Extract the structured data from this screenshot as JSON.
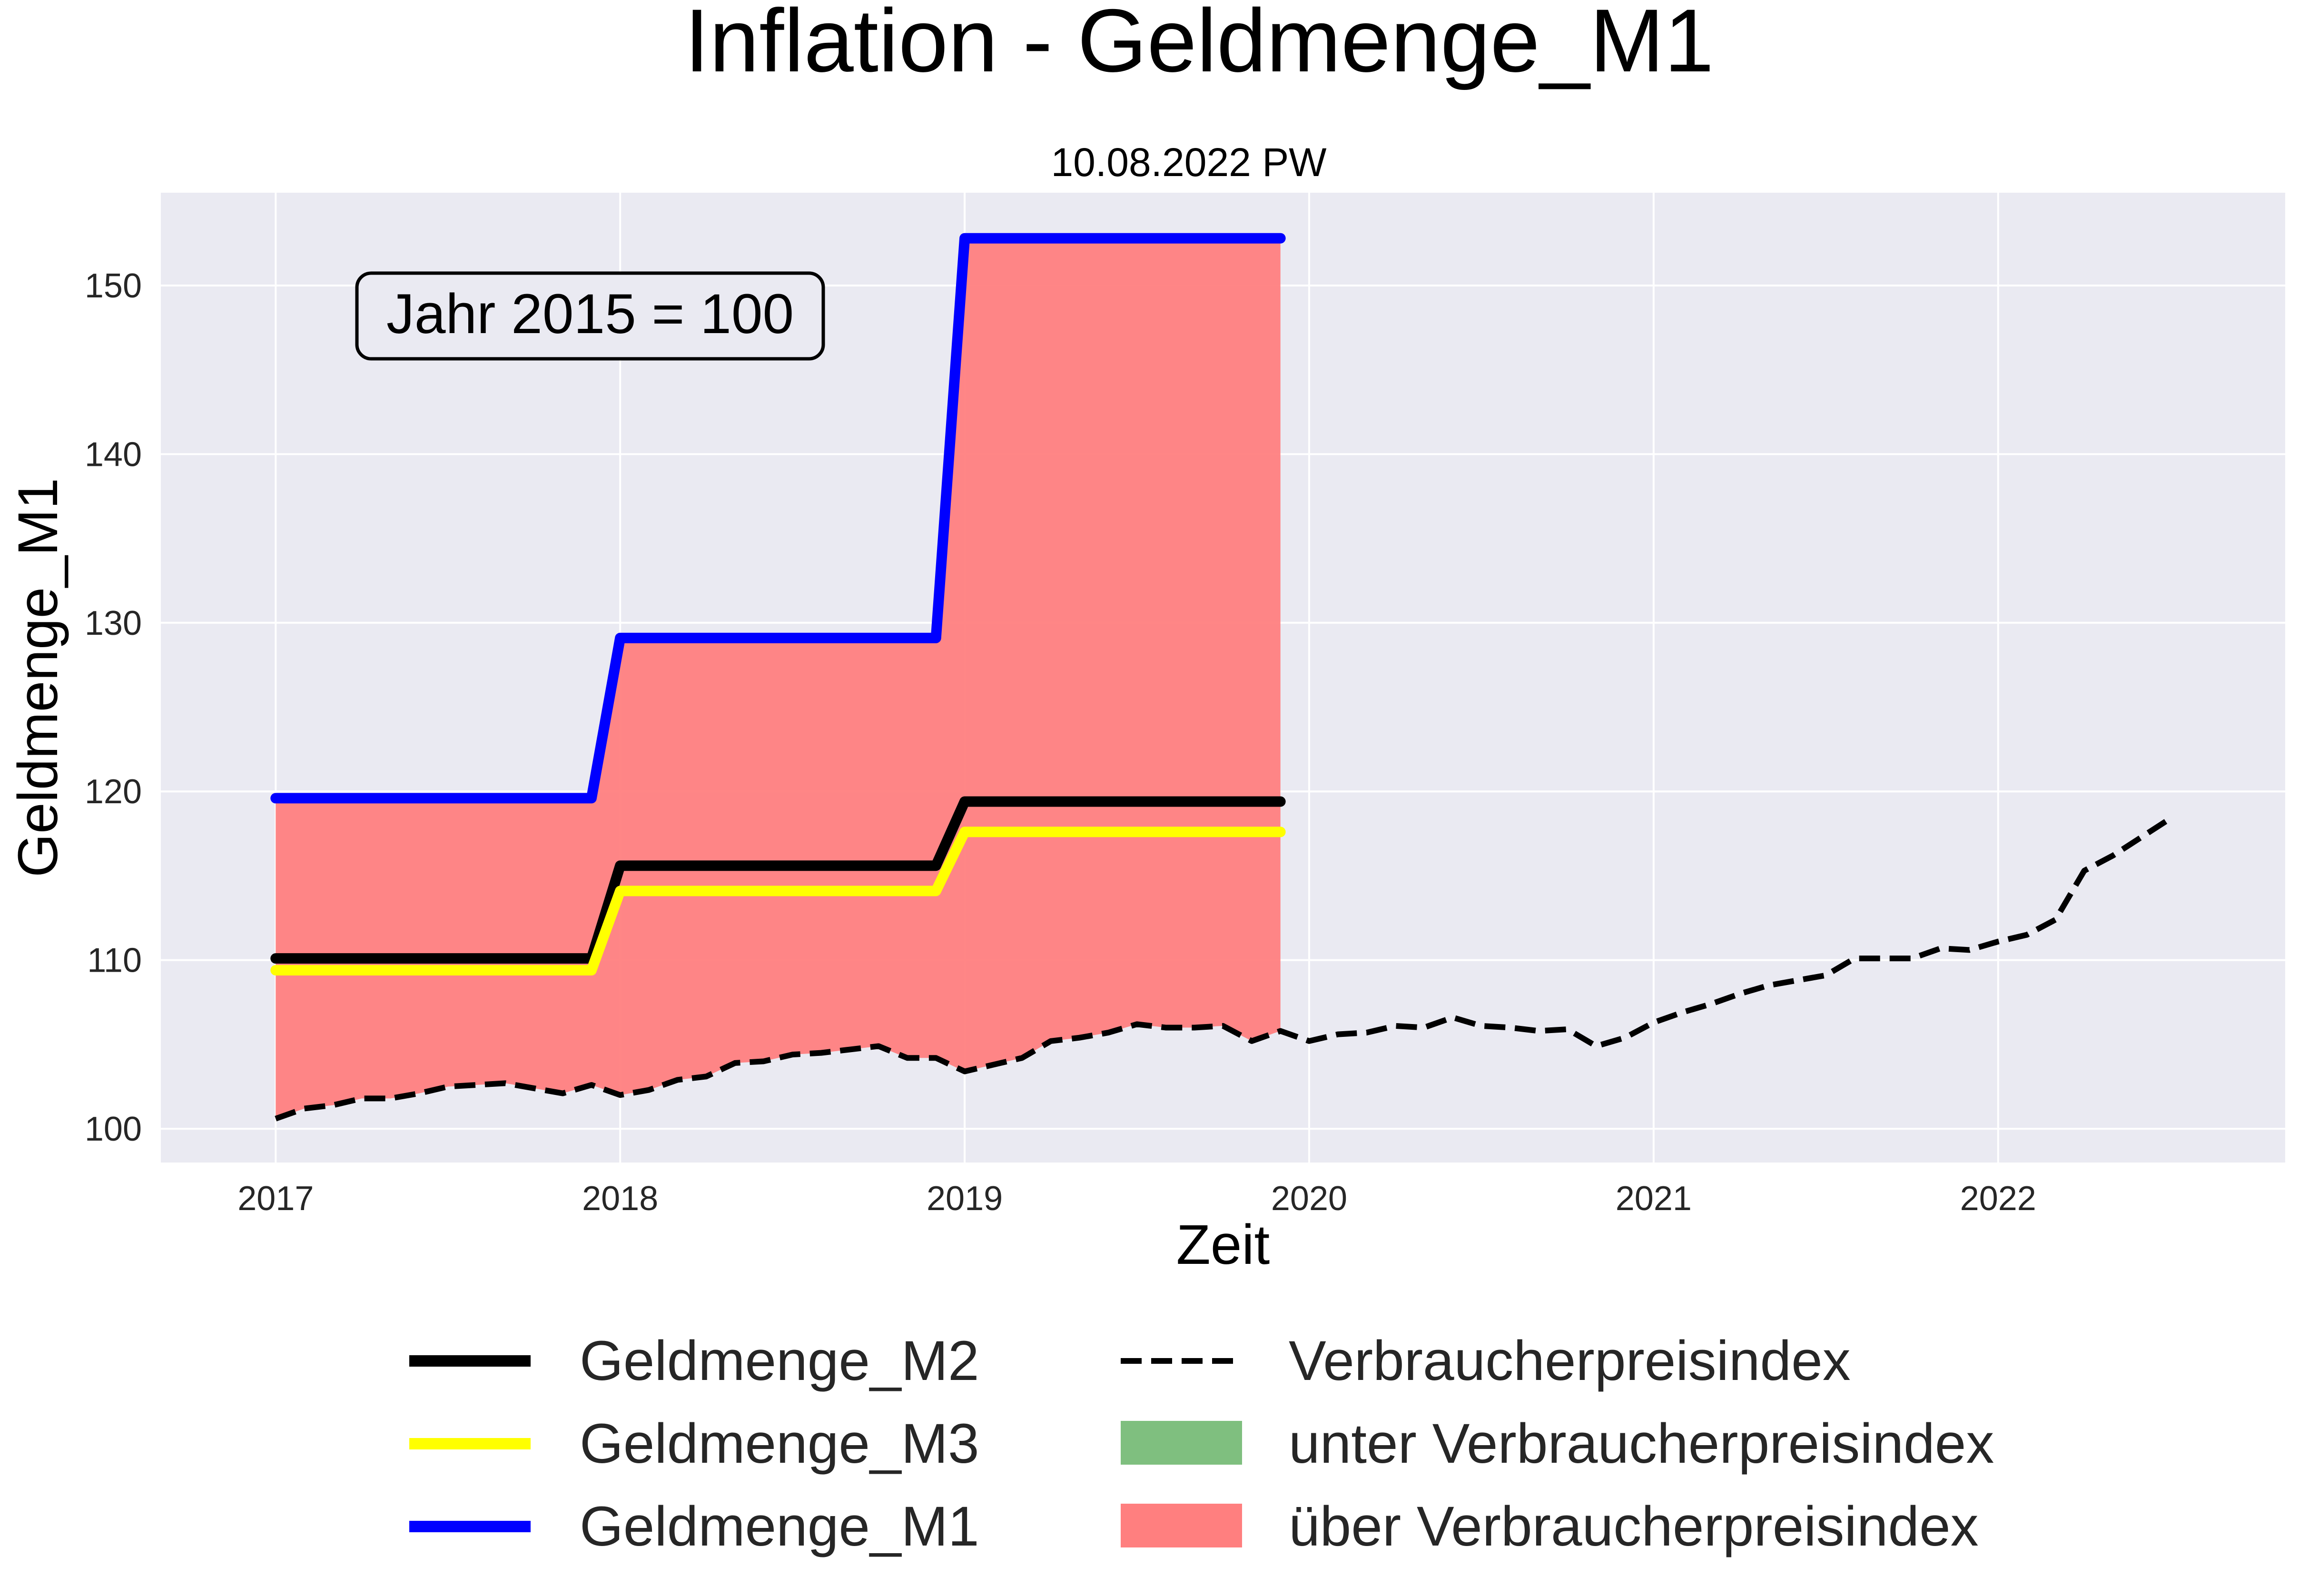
{
  "chart_data": {
    "type": "line",
    "title": "Inflation - Geldmenge_M1",
    "subtitle": "10.08.2022 PW",
    "xlabel": "Zeit",
    "ylabel": "Geldmenge_M1",
    "annotation": "Jahr 2015 = 100",
    "xlim": [
      "2016-09",
      "2022-11"
    ],
    "ylim": [
      98,
      155.5
    ],
    "x_ticks": [
      "2017",
      "2018",
      "2019",
      "2020",
      "2021",
      "2022"
    ],
    "y_ticks": [
      100,
      110,
      120,
      130,
      140,
      150
    ],
    "grid": true,
    "legend_position": "bottom-center",
    "colors": {
      "background": "#eaeaf2",
      "grid": "#ffffff",
      "m1": "#0000ff",
      "m2": "#000000",
      "m3": "#ffff00",
      "vpi": "#000000",
      "above_fill": "#ff7f7f",
      "below_fill": "#7fbf7f"
    },
    "series": [
      {
        "name": "Geldmenge_M2",
        "x": [
          "2017-01",
          "2017-12",
          "2018-01",
          "2018-12",
          "2019-01",
          "2019-12"
        ],
        "values": [
          110.1,
          110.1,
          115.6,
          115.6,
          119.4,
          119.4
        ]
      },
      {
        "name": "Geldmenge_M3",
        "x": [
          "2017-01",
          "2017-12",
          "2018-01",
          "2018-12",
          "2019-01",
          "2019-12"
        ],
        "values": [
          109.4,
          109.4,
          114.1,
          114.1,
          117.6,
          117.6
        ]
      },
      {
        "name": "Geldmenge_M1",
        "x": [
          "2017-01",
          "2017-12",
          "2018-01",
          "2018-12",
          "2019-01",
          "2019-12"
        ],
        "values": [
          119.6,
          119.6,
          129.1,
          129.1,
          152.8,
          152.8
        ]
      },
      {
        "name": "Verbraucherpreisindex",
        "x": [
          "2017-01",
          "2017-02",
          "2017-03",
          "2017-04",
          "2017-05",
          "2017-06",
          "2017-07",
          "2017-08",
          "2017-09",
          "2017-10",
          "2017-11",
          "2017-12",
          "2018-01",
          "2018-02",
          "2018-03",
          "2018-04",
          "2018-05",
          "2018-06",
          "2018-07",
          "2018-08",
          "2018-09",
          "2018-10",
          "2018-11",
          "2018-12",
          "2019-01",
          "2019-02",
          "2019-03",
          "2019-04",
          "2019-05",
          "2019-06",
          "2019-07",
          "2019-08",
          "2019-09",
          "2019-10",
          "2019-11",
          "2019-12",
          "2020-01",
          "2020-02",
          "2020-03",
          "2020-04",
          "2020-05",
          "2020-06",
          "2020-07",
          "2020-08",
          "2020-09",
          "2020-10",
          "2020-11",
          "2020-12",
          "2021-01",
          "2021-02",
          "2021-03",
          "2021-04",
          "2021-05",
          "2021-06",
          "2021-07",
          "2021-08",
          "2021-09",
          "2021-10",
          "2021-11",
          "2021-12",
          "2022-01",
          "2022-02",
          "2022-03",
          "2022-04",
          "2022-05",
          "2022-06",
          "2022-07"
        ],
        "values": [
          100.6,
          101.2,
          101.4,
          101.8,
          101.8,
          102.1,
          102.5,
          102.6,
          102.7,
          102.4,
          102.1,
          102.6,
          102.0,
          102.3,
          102.9,
          103.1,
          103.9,
          104.0,
          104.4,
          104.5,
          104.7,
          104.9,
          104.2,
          104.2,
          103.4,
          103.8,
          104.2,
          105.2,
          105.4,
          105.7,
          106.2,
          106.0,
          106.0,
          106.1,
          105.2,
          105.8,
          105.2,
          105.6,
          105.7,
          106.1,
          106.0,
          106.6,
          106.1,
          106.0,
          105.8,
          105.9,
          104.9,
          105.4,
          106.3,
          106.9,
          107.4,
          108.0,
          108.5,
          108.8,
          109.1,
          110.1,
          110.1,
          110.1,
          110.7,
          110.6,
          111.1,
          111.5,
          112.4,
          115.3,
          116.2,
          117.3,
          118.4
        ]
      }
    ],
    "fill_regions": [
      {
        "name": "unter Verbraucherpreisindex"
      },
      {
        "name": "über Verbraucherpreisindex"
      }
    ]
  }
}
